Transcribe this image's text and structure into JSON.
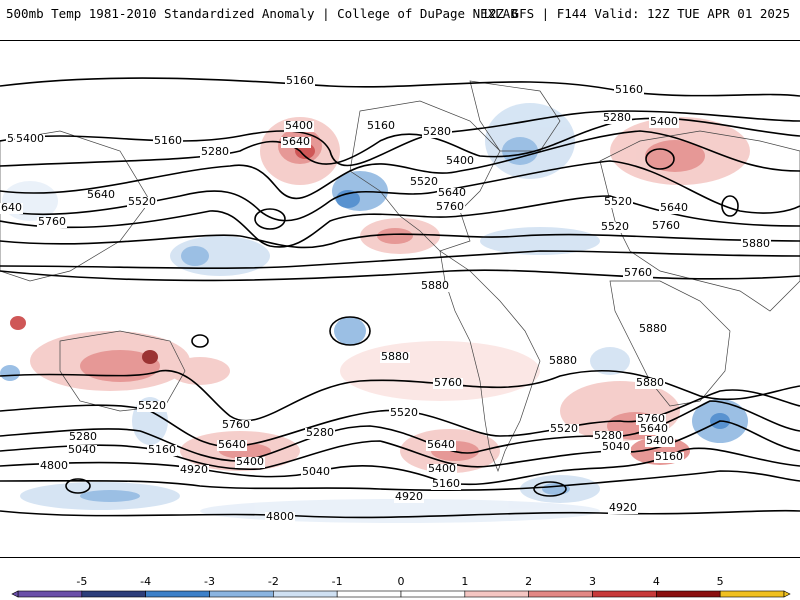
{
  "header": {
    "title": "500mb Temp 1981-2010 Standardized Anomaly | College of DuPage NEXLAB",
    "run_info": "12Z GFS | F144 Valid: 12Z TUE APR 01 2025"
  },
  "colorbar": {
    "ticks": [
      "-5",
      "-4",
      "-3",
      "-2",
      "-1",
      "0",
      "1",
      "2",
      "3",
      "4",
      "5"
    ],
    "colors": [
      "#6a4fa8",
      "#2c3e7a",
      "#3c80c8",
      "#8ab4e0",
      "#cfe0f2",
      "#ffffff",
      "#ffffff",
      "#f4c6c2",
      "#e28784",
      "#c73a3a",
      "#8a1010",
      "#f0c020"
    ]
  },
  "contour_labels": [
    "5160",
    "5400",
    "5640",
    "5160",
    "5280",
    "5160",
    "5280",
    "5400",
    "5520",
    "5640",
    "5760",
    "5880",
    "5160",
    "5280",
    "5400",
    "5520",
    "5640",
    "5760",
    "5880",
    "5400",
    "5520",
    "5640",
    "5760",
    "5880",
    "5760",
    "5880",
    "5880",
    "5760",
    "5880",
    "5520",
    "5760",
    "5640",
    "5400",
    "5280",
    "5040",
    "5160",
    "4920",
    "4800",
    "5280",
    "5040",
    "5520",
    "5640",
    "5400",
    "5160",
    "5520",
    "5280",
    "5040",
    "5760",
    "5640",
    "5400",
    "5160",
    "4920",
    "4920",
    "4800",
    "5400",
    "5640",
    "5520"
  ]
}
